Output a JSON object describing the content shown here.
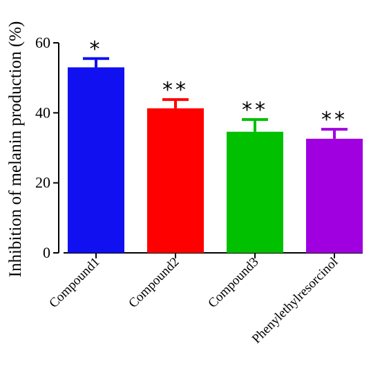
{
  "chart_data": {
    "type": "bar",
    "title": "",
    "xlabel": "",
    "ylabel": "Inhibition of melanin production (%)",
    "ylim": [
      0,
      60
    ],
    "yticks": [
      "0",
      "20",
      "40",
      "60"
    ],
    "grid": false,
    "categories": [
      "Compound1",
      "Compound2",
      "Compound3",
      "Phenylethylresorcinol"
    ],
    "values": [
      53,
      41.3,
      34.6,
      32.6
    ],
    "errors": [
      2.5,
      2.5,
      3.5,
      2.7
    ],
    "colors": [
      "#1010f0",
      "#ff0000",
      "#00c000",
      "#a000e0"
    ],
    "significance": [
      "*",
      "**",
      "**",
      "**"
    ]
  }
}
